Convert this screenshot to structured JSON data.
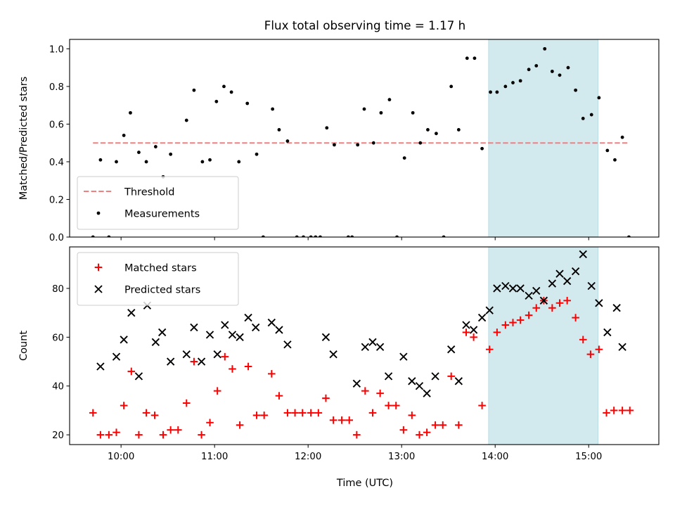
{
  "chart_data": {
    "title": "Flux total observing time = 1.17 h",
    "shaded_region": {
      "x": [
        13.93,
        15.1
      ],
      "color": "#d2e9ee"
    },
    "xlabel": "Time (UTC)",
    "xlim": [
      9.45,
      15.75
    ],
    "xticks": [
      {
        "v": 10,
        "label": "10:00"
      },
      {
        "v": 11,
        "label": "11:00"
      },
      {
        "v": 12,
        "label": "12:00"
      },
      {
        "v": 13,
        "label": "13:00"
      },
      {
        "v": 14,
        "label": "14:00"
      },
      {
        "v": 15,
        "label": "15:00"
      }
    ],
    "panels": [
      {
        "type": "scatter",
        "ylabel": "Matched/Predicted stars",
        "ylim": [
          0,
          1.05
        ],
        "yticks": [
          {
            "v": 0.0,
            "label": "0.0"
          },
          {
            "v": 0.2,
            "label": "0.2"
          },
          {
            "v": 0.4,
            "label": "0.4"
          },
          {
            "v": 0.6,
            "label": "0.6"
          },
          {
            "v": 0.8,
            "label": "0.8"
          },
          {
            "v": 1.0,
            "label": "1.0"
          }
        ],
        "legend": {
          "position": "lower-left",
          "items": [
            {
              "name": "Threshold",
              "marker": "dash",
              "color": "#f08080"
            },
            {
              "name": "Measurements",
              "marker": "dot",
              "color": "#000000"
            }
          ]
        },
        "threshold": {
          "y": 0.5,
          "x": [
            9.7,
            15.43
          ],
          "color": "#f08080"
        },
        "series": [
          {
            "name": "Measurements",
            "marker": "dot",
            "color": "#000000",
            "points": [
              [
                9.7,
                0
              ],
              [
                9.78,
                0.41
              ],
              [
                9.87,
                0
              ],
              [
                9.95,
                0.4
              ],
              [
                10.03,
                0.54
              ],
              [
                10.1,
                0.66
              ],
              [
                10.19,
                0.45
              ],
              [
                10.27,
                0.4
              ],
              [
                10.37,
                0.48
              ],
              [
                10.45,
                0.32
              ],
              [
                10.53,
                0.44
              ],
              [
                10.7,
                0.62
              ],
              [
                10.78,
                0.78
              ],
              [
                10.87,
                0.4
              ],
              [
                10.95,
                0.41
              ],
              [
                11.02,
                0.72
              ],
              [
                11.1,
                0.8
              ],
              [
                11.18,
                0.77
              ],
              [
                11.26,
                0.4
              ],
              [
                11.35,
                0.71
              ],
              [
                11.45,
                0.44
              ],
              [
                11.52,
                0
              ],
              [
                11.62,
                0.68
              ],
              [
                11.69,
                0.57
              ],
              [
                11.78,
                0.51
              ],
              [
                11.88,
                0
              ],
              [
                11.95,
                0
              ],
              [
                12.03,
                0
              ],
              [
                12.08,
                0
              ],
              [
                12.13,
                0
              ],
              [
                12.2,
                0.58
              ],
              [
                12.28,
                0.49
              ],
              [
                12.43,
                0
              ],
              [
                12.47,
                0
              ],
              [
                12.53,
                0.49
              ],
              [
                12.6,
                0.68
              ],
              [
                12.7,
                0.5
              ],
              [
                12.78,
                0.66
              ],
              [
                12.87,
                0.73
              ],
              [
                12.95,
                0
              ],
              [
                13.03,
                0.42
              ],
              [
                13.12,
                0.66
              ],
              [
                13.2,
                0.5
              ],
              [
                13.28,
                0.57
              ],
              [
                13.37,
                0.55
              ],
              [
                13.45,
                0
              ],
              [
                13.53,
                0.8
              ],
              [
                13.61,
                0.57
              ],
              [
                13.7,
                0.95
              ],
              [
                13.78,
                0.95
              ],
              [
                13.86,
                0.47
              ],
              [
                13.95,
                0.77
              ],
              [
                14.02,
                0.77
              ],
              [
                14.11,
                0.8
              ],
              [
                14.19,
                0.82
              ],
              [
                14.27,
                0.83
              ],
              [
                14.36,
                0.89
              ],
              [
                14.44,
                0.91
              ],
              [
                14.53,
                1.0
              ],
              [
                14.61,
                0.88
              ],
              [
                14.69,
                0.86
              ],
              [
                14.78,
                0.9
              ],
              [
                14.86,
                0.78
              ],
              [
                14.94,
                0.63
              ],
              [
                15.03,
                0.65
              ],
              [
                15.11,
                0.74
              ],
              [
                15.2,
                0.46
              ],
              [
                15.28,
                0.41
              ],
              [
                15.36,
                0.53
              ],
              [
                15.43,
                0
              ]
            ]
          }
        ]
      },
      {
        "type": "scatter",
        "ylabel": "Count",
        "ylim": [
          16,
          97
        ],
        "yticks": [
          {
            "v": 20,
            "label": "20"
          },
          {
            "v": 40,
            "label": "40"
          },
          {
            "v": 60,
            "label": "60"
          },
          {
            "v": 80,
            "label": "80"
          }
        ],
        "legend": {
          "position": "upper-left",
          "items": [
            {
              "name": "Matched stars",
              "marker": "plus",
              "color": "#ff0000"
            },
            {
              "name": "Predicted stars",
              "marker": "cross",
              "color": "#000000"
            }
          ]
        },
        "series": [
          {
            "name": "Matched stars",
            "marker": "plus",
            "color": "#ff0000",
            "points": [
              [
                9.7,
                29
              ],
              [
                9.78,
                20
              ],
              [
                9.87,
                20
              ],
              [
                9.95,
                21
              ],
              [
                10.03,
                32
              ],
              [
                10.11,
                46
              ],
              [
                10.19,
                20
              ],
              [
                10.27,
                29
              ],
              [
                10.36,
                28
              ],
              [
                10.45,
                20
              ],
              [
                10.53,
                22
              ],
              [
                10.61,
                22
              ],
              [
                10.7,
                33
              ],
              [
                10.78,
                50
              ],
              [
                10.86,
                20
              ],
              [
                10.95,
                25
              ],
              [
                11.03,
                38
              ],
              [
                11.11,
                52
              ],
              [
                11.19,
                47
              ],
              [
                11.27,
                24
              ],
              [
                11.36,
                48
              ],
              [
                11.45,
                28
              ],
              [
                11.53,
                28
              ],
              [
                11.61,
                45
              ],
              [
                11.69,
                36
              ],
              [
                11.78,
                29
              ],
              [
                11.86,
                29
              ],
              [
                11.94,
                29
              ],
              [
                12.03,
                29
              ],
              [
                12.11,
                29
              ],
              [
                12.19,
                35
              ],
              [
                12.27,
                26
              ],
              [
                12.36,
                26
              ],
              [
                12.44,
                26
              ],
              [
                12.52,
                20
              ],
              [
                12.61,
                38
              ],
              [
                12.69,
                29
              ],
              [
                12.77,
                37
              ],
              [
                12.86,
                32
              ],
              [
                12.94,
                32
              ],
              [
                13.02,
                22
              ],
              [
                13.11,
                28
              ],
              [
                13.19,
                20
              ],
              [
                13.27,
                21
              ],
              [
                13.36,
                24
              ],
              [
                13.44,
                24
              ],
              [
                13.53,
                44
              ],
              [
                13.61,
                24
              ],
              [
                13.69,
                62
              ],
              [
                13.77,
                60
              ],
              [
                13.86,
                32
              ],
              [
                13.94,
                55
              ],
              [
                14.02,
                62
              ],
              [
                14.11,
                65
              ],
              [
                14.19,
                66
              ],
              [
                14.27,
                67
              ],
              [
                14.36,
                69
              ],
              [
                14.44,
                72
              ],
              [
                14.52,
                75
              ],
              [
                14.61,
                72
              ],
              [
                14.69,
                74
              ],
              [
                14.77,
                75
              ],
              [
                14.86,
                68
              ],
              [
                14.94,
                59
              ],
              [
                15.02,
                53
              ],
              [
                15.11,
                55
              ],
              [
                15.19,
                29
              ],
              [
                15.27,
                30
              ],
              [
                15.36,
                30
              ],
              [
                15.44,
                30
              ]
            ]
          },
          {
            "name": "Predicted stars",
            "marker": "cross",
            "color": "#000000",
            "points": [
              [
                9.78,
                48
              ],
              [
                9.95,
                52
              ],
              [
                10.03,
                59
              ],
              [
                10.11,
                70
              ],
              [
                10.19,
                44
              ],
              [
                10.28,
                73
              ],
              [
                10.37,
                58
              ],
              [
                10.44,
                62
              ],
              [
                10.53,
                50
              ],
              [
                10.7,
                53
              ],
              [
                10.78,
                64
              ],
              [
                10.86,
                50
              ],
              [
                10.95,
                61
              ],
              [
                11.03,
                53
              ],
              [
                11.11,
                65
              ],
              [
                11.19,
                61
              ],
              [
                11.27,
                60
              ],
              [
                11.36,
                68
              ],
              [
                11.44,
                64
              ],
              [
                11.61,
                66
              ],
              [
                11.69,
                63
              ],
              [
                11.78,
                57
              ],
              [
                12.19,
                60
              ],
              [
                12.27,
                53
              ],
              [
                12.52,
                41
              ],
              [
                12.61,
                56
              ],
              [
                12.69,
                58
              ],
              [
                12.77,
                56
              ],
              [
                12.86,
                44
              ],
              [
                13.02,
                52
              ],
              [
                13.11,
                42
              ],
              [
                13.19,
                40
              ],
              [
                13.27,
                37
              ],
              [
                13.36,
                44
              ],
              [
                13.53,
                55
              ],
              [
                13.61,
                42
              ],
              [
                13.69,
                65
              ],
              [
                13.77,
                63
              ],
              [
                13.86,
                68
              ],
              [
                13.94,
                71
              ],
              [
                14.02,
                80
              ],
              [
                14.11,
                81
              ],
              [
                14.19,
                80
              ],
              [
                14.27,
                80
              ],
              [
                14.36,
                77
              ],
              [
                14.44,
                79
              ],
              [
                14.52,
                75
              ],
              [
                14.61,
                82
              ],
              [
                14.69,
                86
              ],
              [
                14.77,
                83
              ],
              [
                14.86,
                87
              ],
              [
                14.94,
                94
              ],
              [
                15.03,
                81
              ],
              [
                15.11,
                74
              ],
              [
                15.2,
                62
              ],
              [
                15.3,
                72
              ],
              [
                15.36,
                56
              ]
            ]
          }
        ]
      }
    ]
  }
}
